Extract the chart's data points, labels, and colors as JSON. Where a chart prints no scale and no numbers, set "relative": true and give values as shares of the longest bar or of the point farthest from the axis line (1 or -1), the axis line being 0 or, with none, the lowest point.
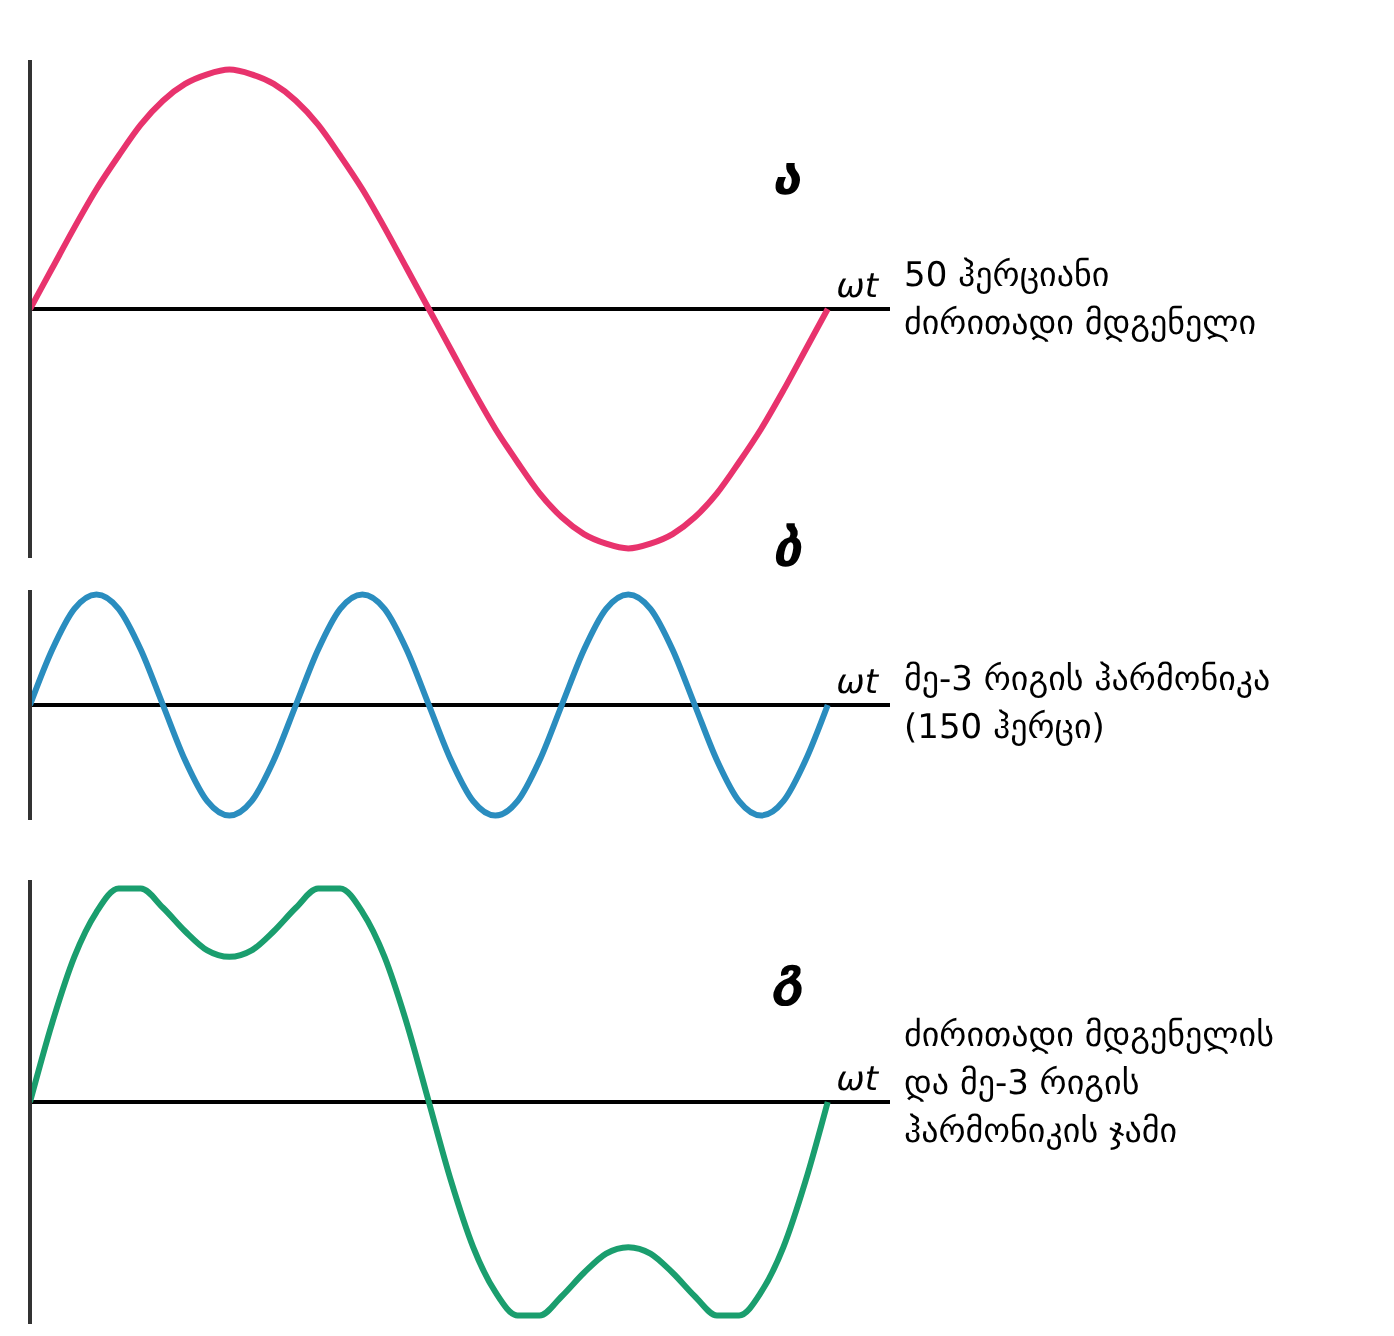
{
  "chart_data": [
    {
      "type": "line",
      "title": "ა",
      "xlabel": "ωt",
      "relative": true,
      "marker": "none",
      "line_style": "solid",
      "categories": [
        null,
        null,
        null,
        null,
        null,
        null,
        null,
        null,
        null,
        null,
        null,
        null,
        null,
        null,
        null,
        null,
        null,
        null,
        null,
        null,
        null,
        null,
        null,
        null,
        null,
        null,
        null,
        null,
        null,
        null,
        null,
        null,
        null,
        null,
        null,
        null,
        null
      ],
      "series": [
        {
          "color": "#e8336d",
          "values": [
            0,
            0.17,
            0.34,
            0.5,
            0.64,
            0.77,
            0.87,
            0.94,
            0.98,
            1,
            0.98,
            0.94,
            0.87,
            0.77,
            0.64,
            0.5,
            0.34,
            0.17,
            0,
            -0.17,
            -0.34,
            -0.5,
            -0.64,
            -0.77,
            -0.87,
            -0.94,
            -0.98,
            -1,
            -0.98,
            -0.94,
            -0.87,
            -0.77,
            -0.64,
            -0.5,
            -0.34,
            -0.17,
            0
          ]
        }
      ],
      "annotations": [
        "50 ჰერციანი\nძირითადი მდგენელი"
      ]
    },
    {
      "type": "line",
      "title": "ბ",
      "xlabel": "ωt",
      "relative": true,
      "marker": "none",
      "line_style": "solid",
      "categories": [
        null,
        null,
        null,
        null,
        null,
        null,
        null,
        null,
        null,
        null,
        null,
        null,
        null,
        null,
        null,
        null,
        null,
        null,
        null,
        null,
        null,
        null,
        null,
        null,
        null,
        null,
        null,
        null,
        null,
        null,
        null,
        null,
        null,
        null,
        null,
        null,
        null
      ],
      "series": [
        {
          "color": "#2a8dbf",
          "values": [
            0,
            0.5,
            0.87,
            1,
            0.87,
            0.5,
            0,
            -0.5,
            -0.87,
            -1,
            -0.87,
            -0.5,
            0,
            0.5,
            0.87,
            1,
            0.87,
            0.5,
            0,
            -0.5,
            -0.87,
            -1,
            -0.87,
            -0.5,
            0,
            0.5,
            0.87,
            1,
            0.87,
            0.5,
            0,
            -0.5,
            -0.87,
            -1,
            -0.87,
            -0.5,
            0
          ]
        }
      ],
      "annotations": [
        "მე-3 რიგის ჰარმონიკა\n(150 ჰერცი)"
      ]
    },
    {
      "type": "line",
      "title": "გ",
      "xlabel": "ωt",
      "relative": true,
      "marker": "none",
      "line_style": "solid",
      "categories": [
        null,
        null,
        null,
        null,
        null,
        null,
        null,
        null,
        null,
        null,
        null,
        null,
        null,
        null,
        null,
        null,
        null,
        null,
        null,
        null,
        null,
        null,
        null,
        null,
        null,
        null,
        null,
        null,
        null,
        null,
        null,
        null,
        null,
        null,
        null,
        null,
        null
      ],
      "series": [
        {
          "color": "#1a9e6e",
          "values": [
            0,
            0.37,
            0.68,
            0.89,
            1,
            1,
            0.91,
            0.8,
            0.71,
            0.68,
            0.71,
            0.8,
            0.91,
            1,
            1,
            0.89,
            0.68,
            0.37,
            0,
            -0.37,
            -0.68,
            -0.89,
            -1,
            -1,
            -0.91,
            -0.8,
            -0.71,
            -0.68,
            -0.71,
            -0.8,
            -0.91,
            -1,
            -1,
            -0.89,
            -0.68,
            -0.37,
            0
          ]
        }
      ],
      "annotations": [
        "ძირითადი მდგენელის\nდა მე-3 რიგის\nჰარმონიკის ჯამი"
      ]
    }
  ]
}
